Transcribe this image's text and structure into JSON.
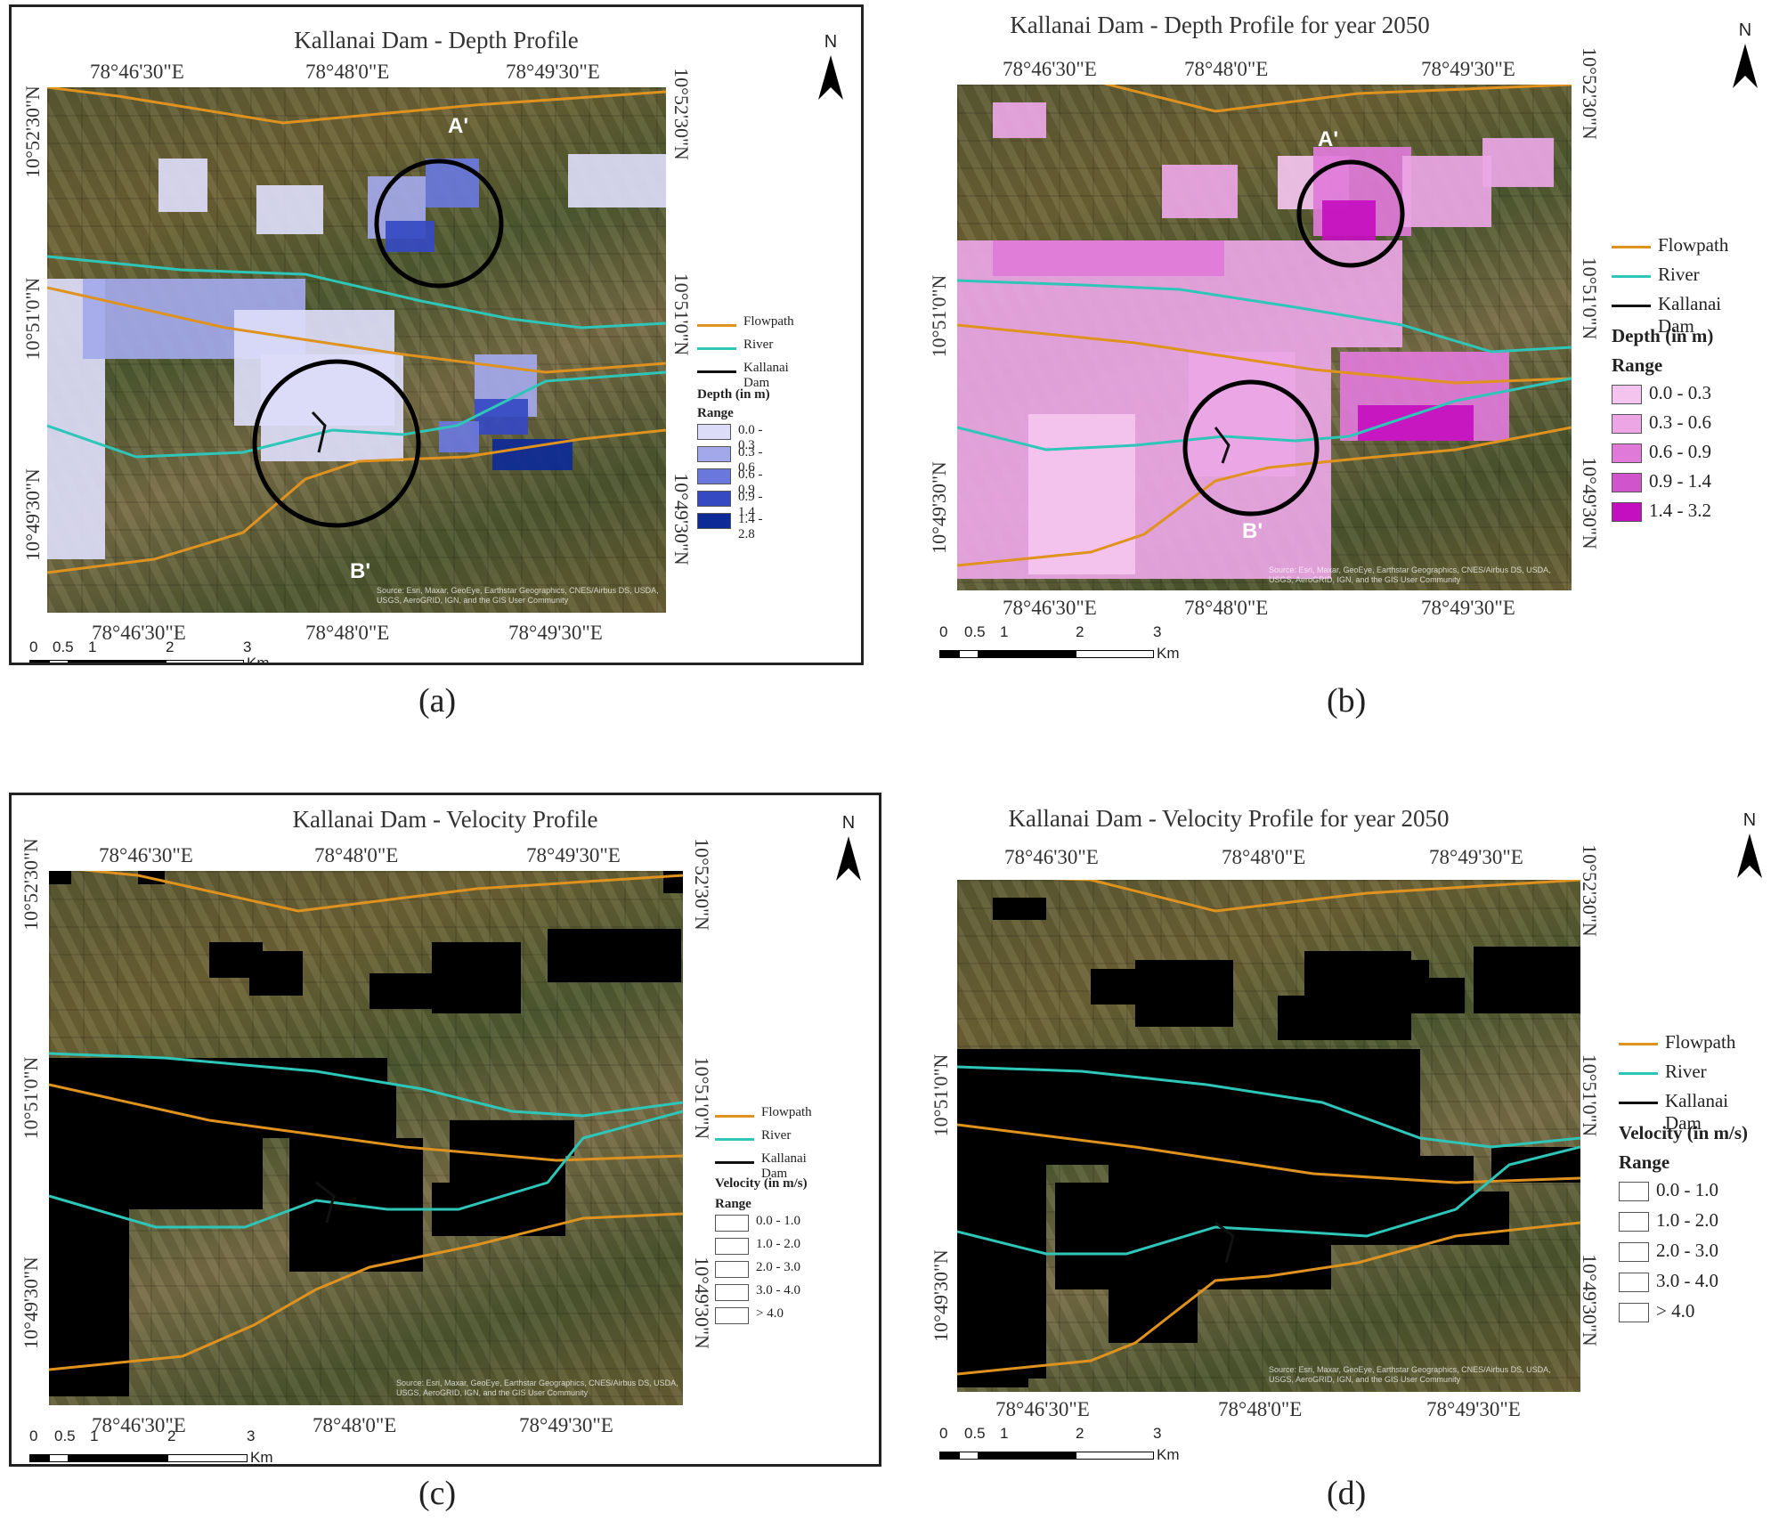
{
  "colors": {
    "flowpath": "#e0921e",
    "river": "#2ec6b8",
    "dam": "#111111",
    "depth_ramp": [
      "#dcdcf8",
      "#a3a8ea",
      "#6a78de",
      "#3549c2",
      "#0d2a96"
    ],
    "velocity_ramp": [
      "#f4c4ef",
      "#eca6e6",
      "#e07ad9",
      "#d054cc",
      "#c40fc0"
    ]
  },
  "panels": [
    {
      "title": "Kallanai Dam - Depth Profile",
      "label": "(a)",
      "kind": "depth",
      "lon_top": [
        "78°46'30\"E",
        "78°48'0\"E",
        "78°49'30\"E"
      ],
      "lon_bottom": [
        "78°46'30\"E",
        "78°48'0\"E",
        "78°49'30\"E"
      ],
      "lat_left": [
        "10°52'30\"N",
        "10°51'0\"N",
        "10°49'30\"N"
      ],
      "lat_right": [
        "10°52'30\"N",
        "10°51'0\"N",
        "10°49'30\"N"
      ],
      "legend": {
        "flowpath": "Flowpath",
        "river": "River",
        "dam": "Kallanai Dam",
        "heading": "Depth (in m)",
        "range_label": "Range",
        "classes": [
          "0.0 - 0.3",
          "0.3 - 0.6",
          "0.6 - 0.9",
          "0.9 - 1.4",
          "1.4 - 2.8"
        ]
      },
      "markers": [
        "A'",
        "B'"
      ],
      "attribution": "Source: Esri, Maxar, GeoEye, Earthstar Geographics, CNES/Airbus DS, USDA, USGS, AeroGRID, IGN, and the GIS User Community",
      "scale": {
        "ticks": [
          "0",
          "0.5",
          "1",
          "2",
          "3"
        ],
        "unit": "Km"
      }
    },
    {
      "title": "Kallanai Dam - Depth Profile for year 2050",
      "label": "(b)",
      "kind": "depth",
      "lon_top": [
        "78°46'30\"E",
        "78°48'0\"E",
        "78°49'30\"E"
      ],
      "lon_bottom": [
        "78°46'30\"E",
        "78°48'0\"E",
        "78°49'30\"E"
      ],
      "lat_left": [
        "10°51'0\"N",
        "10°49'30\"N"
      ],
      "lat_right": [
        "10°52'30\"N",
        "10°51'0\"N",
        "10°49'30\"N"
      ],
      "legend": {
        "flowpath": "Flowpath",
        "river": "River",
        "dam": "Kallanai Dam",
        "heading": "Depth (in m)",
        "range_label": "Range",
        "classes": [
          "0.0 - 0.3",
          "0.3 - 0.6",
          "0.6 - 0.9",
          "0.9 - 1.4",
          "1.4 - 3.2"
        ]
      },
      "markers": [
        "A'",
        "B'"
      ],
      "attribution": "Source: Esri, Maxar, GeoEye, Earthstar Geographics, CNES/Airbus DS, USDA, USGS, AeroGRID, IGN, and the GIS User Community",
      "scale": {
        "ticks": [
          "0",
          "0.5",
          "1",
          "2",
          "3"
        ],
        "unit": "Km"
      }
    },
    {
      "title": "Kallanai Dam - Velocity Profile",
      "label": "(c)",
      "kind": "velocity",
      "lon_top": [
        "78°46'30\"E",
        "78°48'0\"E",
        "78°49'30\"E"
      ],
      "lon_bottom": [
        "78°46'30\"E",
        "78°48'0\"E",
        "78°49'30\"E"
      ],
      "lat_left": [
        "10°52'30\"N",
        "10°51'0\"N",
        "10°49'30\"N"
      ],
      "lat_right": [
        "10°52'30\"N",
        "10°51'0\"N",
        "10°49'30\"N"
      ],
      "legend": {
        "flowpath": "Flowpath",
        "river": "River",
        "dam": "Kallanai Dam",
        "heading": "Velocity (in m/s)",
        "range_label": "Range",
        "classes": [
          "0.0 - 1.0",
          "1.0 - 2.0",
          "2.0 - 3.0",
          "3.0 - 4.0",
          "> 4.0"
        ]
      },
      "markers": [],
      "attribution": "Source: Esri, Maxar, GeoEye, Earthstar Geographics, CNES/Airbus DS, USDA, USGS, AeroGRID, IGN, and the GIS User Community",
      "scale": {
        "ticks": [
          "0",
          "0.5",
          "1",
          "2",
          "3"
        ],
        "unit": "Km"
      }
    },
    {
      "title": "Kallanai Dam - Velocity Profile for year 2050",
      "label": "(d)",
      "kind": "velocity",
      "lon_top": [
        "78°46'30\"E",
        "78°48'0\"E",
        "78°49'30\"E"
      ],
      "lon_bottom": [
        "78°46'30\"E",
        "78°48'0\"E",
        "78°49'30\"E"
      ],
      "lat_left": [
        "10°51'0\"N",
        "10°49'30\"N"
      ],
      "lat_right": [
        "10°52'30\"N",
        "10°51'0\"N",
        "10°49'30\"N"
      ],
      "legend": {
        "flowpath": "Flowpath",
        "river": "River",
        "dam": "Kallanai Dam",
        "heading": "Velocity (in m/s)",
        "range_label": "Range",
        "classes": [
          "0.0 - 1.0",
          "1.0 - 2.0",
          "2.0 - 3.0",
          "3.0 - 4.0",
          "> 4.0"
        ]
      },
      "markers": [],
      "attribution": "Source: Esri, Maxar, GeoEye, Earthstar Geographics, CNES/Airbus DS, USDA, USGS, AeroGRID, IGN, and the GIS User Community",
      "scale": {
        "ticks": [
          "0",
          "0.5",
          "1",
          "2",
          "3"
        ],
        "unit": "Km"
      }
    }
  ],
  "north_label": "N"
}
